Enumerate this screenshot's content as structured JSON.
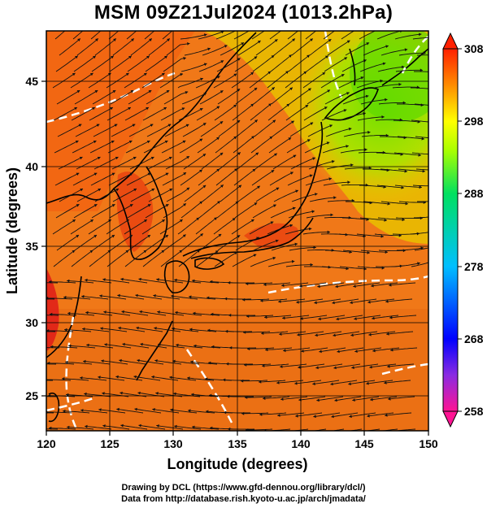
{
  "title": "MSM 09Z21Jul2024 (1013.2hPa)",
  "credits": {
    "line1": "Drawing by DCL (https://www.gfd-dennou.org/library/dcl/)",
    "line2": "Data from http://database.rish.kyoto-u.ac.jp/arch/jmadata/"
  },
  "chart_data": {
    "type": "heatmap",
    "title": "MSM 09Z21Jul2024 (1013.2hPa)",
    "xlabel": "Longitude (degrees)",
    "ylabel": "Latitude  (degrees)",
    "xlim": [
      120,
      150
    ],
    "ylim": [
      22.5,
      47.5
    ],
    "x_ticks": [
      120,
      125,
      130,
      135,
      140,
      145,
      150
    ],
    "y_ticks": [
      25,
      30,
      35,
      40,
      45
    ],
    "grid": true,
    "overlays": [
      "streamlines",
      "coastlines",
      "white dashed contours"
    ],
    "colorbar": {
      "ticks": [
        308,
        298,
        288,
        278,
        268,
        258
      ],
      "range": [
        258,
        308
      ],
      "colors": [
        "#ff1493",
        "#0000ff",
        "#00bfff",
        "#00ff7f",
        "#ffff00",
        "#ff8c00",
        "#ff0000"
      ]
    }
  }
}
